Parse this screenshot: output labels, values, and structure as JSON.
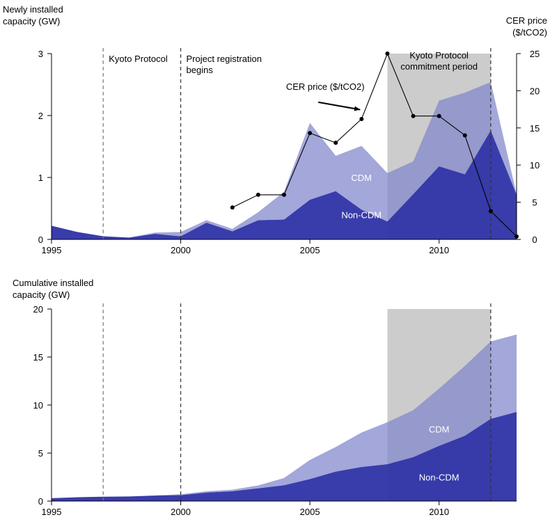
{
  "chart_data": [
    {
      "type": "area",
      "ylabel": "Newly installed capacity (GW)",
      "ylabel_lines": [
        "Newly installed",
        "capacity (GW)"
      ],
      "y2label": "CER price ($/tCO2)",
      "y2label_lines": [
        "CER price",
        "($/tCO2)"
      ],
      "x": [
        1995,
        1996,
        1997,
        1998,
        1999,
        2000,
        2001,
        2002,
        2003,
        2004,
        2005,
        2006,
        2007,
        2008,
        2009,
        2010,
        2011,
        2012,
        2013
      ],
      "xlim": [
        1995,
        2013
      ],
      "ylim": [
        0,
        3
      ],
      "y2lim": [
        0,
        25
      ],
      "x_ticks": [
        1995,
        2000,
        2005,
        2010
      ],
      "y_ticks": [
        0,
        1,
        2,
        3
      ],
      "y2_ticks": [
        0,
        5,
        10,
        15,
        20,
        25
      ],
      "stacked": true,
      "series": [
        {
          "name": "Non-CDM",
          "color": "#2e31a6",
          "values": [
            0.22,
            0.12,
            0.05,
            0.03,
            0.09,
            0.05,
            0.27,
            0.13,
            0.31,
            0.32,
            0.64,
            0.78,
            0.48,
            0.29,
            0.73,
            1.18,
            1.05,
            1.76,
            0.72
          ]
        },
        {
          "name": "CDM",
          "color": "#8085cb",
          "values": [
            0,
            0,
            0,
            0,
            0.02,
            0.07,
            0.04,
            0.04,
            0.13,
            0.45,
            1.24,
            0.57,
            1.03,
            0.78,
            0.53,
            1.06,
            1.32,
            0.78,
            0.01
          ]
        }
      ],
      "line_series": {
        "name": "CER price ($/tCO2)",
        "axis": "right",
        "x": [
          2002,
          2003,
          2004,
          2005,
          2006,
          2007,
          2008,
          2009,
          2010,
          2011,
          2012,
          2013
        ],
        "values": [
          4.3,
          6.0,
          6.0,
          14.3,
          13.0,
          16.2,
          25.0,
          16.6,
          16.6,
          14.0,
          3.8,
          0.4
        ]
      },
      "vlines": [
        {
          "x": 1997,
          "label": "Kyoto Protocol",
          "color": "#777777"
        },
        {
          "x": 2000,
          "label": "Project registration begins",
          "label_lines": [
            "Project registration",
            "begins"
          ],
          "color": "#333333"
        }
      ],
      "shaded_region": {
        "x0": 2008,
        "x1": 2012,
        "label": "Kyoto Protocol commitment period",
        "label_lines": [
          "Kyoto Protocol",
          "commitment period"
        ],
        "color": "#cccccc"
      },
      "annotations": [
        {
          "text": "CER price ($/tCO2)",
          "x": 2006.0,
          "y": 2.35,
          "arrow_to": [
            2007.0,
            2.05
          ]
        },
        {
          "text": "CDM",
          "x": 2006.0,
          "y": 1.0
        },
        {
          "text": "Non-CDM",
          "x": 2006.0,
          "y": 0.4
        }
      ]
    },
    {
      "type": "area",
      "ylabel": "Cumulative installed capacity (GW)",
      "ylabel_lines": [
        "Cumulative installed",
        "capacity (GW)"
      ],
      "x": [
        1995,
        1996,
        1997,
        1998,
        1999,
        2000,
        2001,
        2002,
        2003,
        2004,
        2005,
        2006,
        2007,
        2008,
        2009,
        2010,
        2011,
        2012,
        2013
      ],
      "xlim": [
        1995,
        2013
      ],
      "ylim": [
        0,
        20
      ],
      "x_ticks": [
        1995,
        2000,
        2005,
        2010
      ],
      "y_ticks": [
        0,
        5,
        10,
        15,
        20
      ],
      "stacked": true,
      "series": [
        {
          "name": "Non-CDM",
          "color": "#2e31a6",
          "values": [
            0.3,
            0.4,
            0.45,
            0.48,
            0.57,
            0.62,
            0.89,
            1.02,
            1.33,
            1.65,
            2.29,
            3.07,
            3.55,
            3.84,
            4.57,
            5.75,
            6.8,
            8.56,
            9.28
          ]
        },
        {
          "name": "CDM",
          "color": "#8085cb",
          "values": [
            0,
            0,
            0,
            0,
            0.02,
            0.09,
            0.13,
            0.17,
            0.3,
            0.75,
            1.99,
            2.56,
            3.59,
            4.37,
            4.9,
            5.96,
            7.28,
            8.06,
            8.07
          ]
        }
      ],
      "vlines": [
        {
          "x": 1997,
          "color": "#777777"
        },
        {
          "x": 2000,
          "color": "#333333"
        }
      ],
      "shaded_region": {
        "x0": 2008,
        "x1": 2012,
        "color": "#cccccc"
      },
      "annotations": [
        {
          "text": "CDM",
          "x": 2010.0,
          "y": 7.5
        },
        {
          "text": "Non-CDM",
          "x": 2010.0,
          "y": 2.5
        }
      ]
    }
  ]
}
